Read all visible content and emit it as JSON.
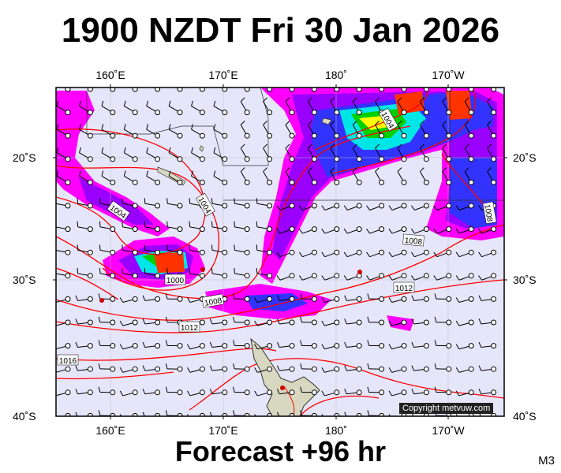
{
  "title": "1900 NZDT Fri 30 Jan 2026",
  "footer": "Forecast +96 hr",
  "model_code": "M3",
  "copyright": "Copyright metvuw.com",
  "axes": {
    "lon_labels": [
      "160˚E",
      "170˚E",
      "180˚",
      "170˚W"
    ],
    "lat_labels": [
      "20˚S",
      "30˚S",
      "40˚S"
    ]
  },
  "isobar_labels": [
    "1004",
    "1004",
    "1004",
    "1008",
    "1008",
    "1012",
    "1016",
    "1008",
    "1012",
    "1000"
  ],
  "colors": {
    "ocean": "#e6e6fa",
    "isobar": "#ff0000",
    "rain_light": "#ff00ff",
    "rain_mod": "#9900ff",
    "rain_heavy": "#3333ff",
    "rain_vheavy": "#00e5e5",
    "rain_ext1": "#00d000",
    "rain_ext2": "#ffff00",
    "rain_ext3": "#ff3300"
  }
}
